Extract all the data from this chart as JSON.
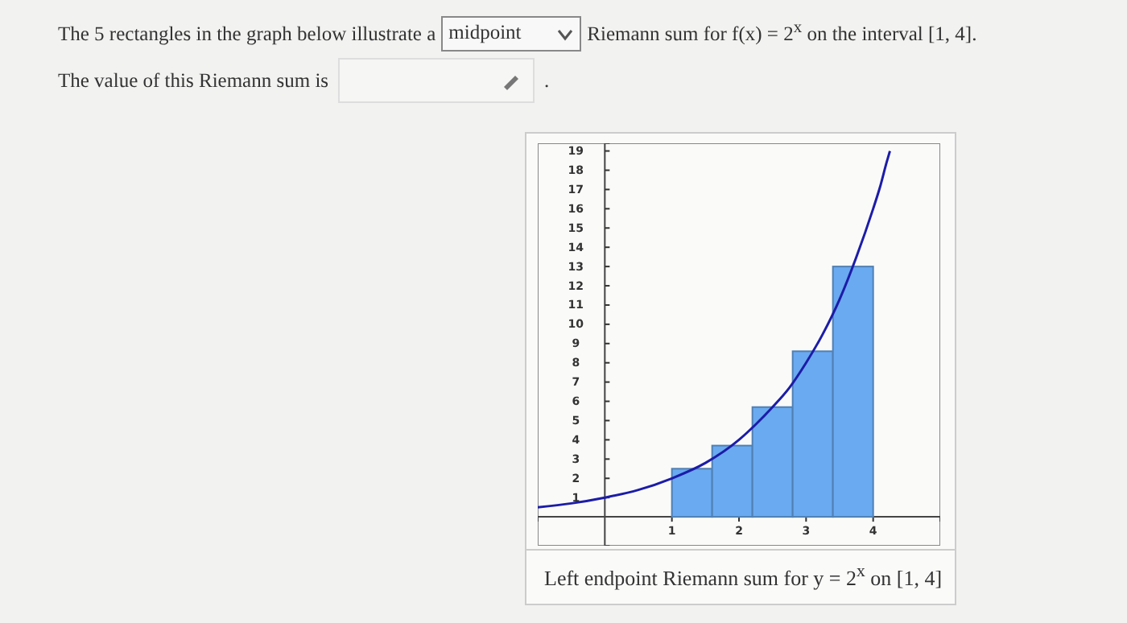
{
  "chart_data": {
    "type": "bar",
    "annotations": [
      "The 5 rectangles in the graph below illustrate a",
      "midpoint",
      "Riemann sum for f(x) = 2$^{x}$ on the interval [1, 4].",
      "The value of this Riemann sum is",
      ".",
      "Left endpoint Riemann sum for y = 2$^{x}$ on [1, 4]"
    ],
    "series": [
      {
        "color": "#6aaaf0",
        "x": [
          1.3,
          1.9,
          2.5,
          3.1,
          3.7
        ],
        "values": [
          2.5,
          3.7,
          5.7,
          8.6,
          13
        ]
      },
      {
        "type": "line",
        "color": "#1c1ca8",
        "x": [
          -1,
          -0.5,
          0,
          0.5,
          1,
          1.5,
          2,
          2.25,
          2.5,
          2.75,
          3,
          3.25,
          3.5,
          3.75,
          4,
          4.1,
          4.2,
          4.25
        ],
        "values": [
          0.5,
          0.7,
          1,
          1.4,
          2,
          2.8,
          4,
          4.8,
          5.7,
          6.7,
          8,
          9.5,
          11.3,
          13.5,
          16,
          17.1,
          18.4,
          19
        ]
      }
    ],
    "xlim": [
      -1,
      5
    ],
    "xticks": [
      1,
      2,
      3,
      4
    ],
    "ylim": [
      -1.5,
      19.4
    ],
    "yticks": [
      1,
      2,
      3,
      4,
      5,
      6,
      7,
      8,
      9,
      10,
      11,
      12,
      13,
      14,
      15,
      16,
      17,
      18,
      19
    ],
    "grid": false,
    "marker": "none",
    "line_style": "solid"
  }
}
